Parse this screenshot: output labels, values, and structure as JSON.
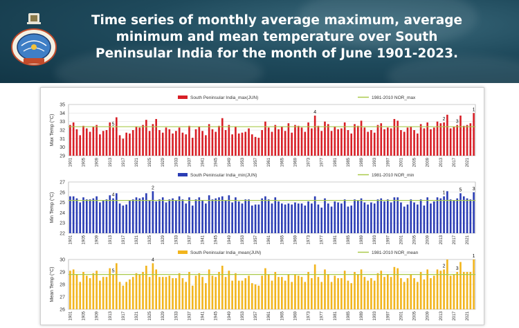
{
  "header": {
    "title": "Time series of monthly average maximum, average minimum and mean temperature over South Peninsular India for the month of June 1901-2023.",
    "colors": {
      "background": "#1f4a5c",
      "title": "#ffffff"
    },
    "logo_icon": "imd-emblem-icon"
  },
  "chart_data": [
    {
      "type": "bar",
      "legend": [
        "South Peninsular India_max(JUN)",
        "1981-2010 NOR_max"
      ],
      "ylabel": "Max Temp (°C)",
      "ylim": [
        29,
        35
      ],
      "yticks": [
        29,
        30,
        31,
        32,
        33,
        34,
        35
      ],
      "normal": 32.4,
      "color": "#d81f26",
      "normal_color": "#a9c94a",
      "start_year": 1901,
      "xticks": [
        "1901",
        "1905",
        "1909",
        "1913",
        "1917",
        "1921",
        "1925",
        "1929",
        "1933",
        "1937",
        "1941",
        "1945",
        "1949",
        "1953",
        "1957",
        "1961",
        "1965",
        "1969",
        "1973",
        "1977",
        "1981",
        "1985",
        "1989",
        "1993",
        "1997",
        "2001",
        "2005",
        "2009",
        "2013",
        "2017",
        "2021"
      ],
      "rank_labels": [
        {
          "year": 1914,
          "label": "5"
        },
        {
          "year": 1975,
          "label": "4"
        },
        {
          "year": 2014,
          "label": "2"
        },
        {
          "year": 2018,
          "label": "3"
        },
        {
          "year": 2023,
          "label": "1"
        }
      ],
      "values": [
        32.6,
        32.9,
        32.1,
        31.4,
        32.5,
        32.2,
        31.8,
        32.4,
        32.6,
        31.5,
        31.9,
        32.0,
        32.9,
        32.3,
        33.5,
        31.4,
        31.0,
        31.7,
        31.6,
        32.0,
        32.4,
        32.3,
        32.6,
        33.2,
        31.9,
        32.7,
        33.3,
        32.0,
        31.7,
        32.3,
        32.1,
        31.6,
        31.9,
        32.3,
        31.7,
        31.5,
        32.5,
        31.1,
        32.1,
        32.4,
        31.9,
        31.4,
        32.7,
        32.1,
        31.8,
        32.5,
        33.4,
        32.0,
        32.6,
        31.5,
        32.4,
        31.6,
        31.7,
        31.8,
        32.2,
        31.5,
        31.2,
        31.1,
        32.0,
        33.0,
        32.3,
        31.8,
        32.6,
        32.1,
        32.4,
        31.9,
        32.8,
        31.7,
        32.6,
        32.5,
        32.3,
        31.8,
        32.9,
        32.2,
        33.7,
        32.5,
        31.9,
        33.0,
        32.7,
        31.9,
        32.4,
        32.1,
        32.2,
        32.9,
        32.0,
        31.6,
        32.7,
        32.5,
        33.1,
        32.3,
        31.8,
        32.0,
        31.7,
        32.6,
        32.8,
        32.1,
        32.3,
        32.2,
        33.3,
        33.1,
        32.0,
        31.8,
        32.3,
        32.4,
        32.0,
        31.6,
        32.7,
        32.2,
        32.9,
        32.1,
        32.3,
        33.0,
        32.8,
        32.9,
        33.8,
        32.2,
        32.4,
        32.6,
        33.7,
        32.5,
        32.6,
        32.8,
        34.0
      ]
    },
    {
      "type": "bar",
      "legend": [
        "South Peninsular India_min(JUN)",
        "1981-2010 NOR_min"
      ],
      "ylabel": "Min Temp (°C)",
      "ylim": [
        22,
        27
      ],
      "yticks": [
        22,
        23,
        24,
        25,
        26,
        27
      ],
      "normal": 25.2,
      "color": "#2b3db5",
      "normal_color": "#a9c94a",
      "start_year": 1901,
      "xticks": [
        "1901",
        "1905",
        "1909",
        "1913",
        "1917",
        "1921",
        "1925",
        "1929",
        "1933",
        "1937",
        "1941",
        "1945",
        "1949",
        "1953",
        "1957",
        "1961",
        "1965",
        "1969",
        "1973",
        "1977",
        "1981",
        "1985",
        "1989",
        "1993",
        "1997",
        "2001",
        "2005",
        "2009",
        "2013",
        "2017",
        "2021"
      ],
      "rank_labels": [
        {
          "year": 1914,
          "label": "4"
        },
        {
          "year": 1926,
          "label": "2"
        },
        {
          "year": 2014,
          "label": "1"
        },
        {
          "year": 2019,
          "label": "5"
        },
        {
          "year": 2023,
          "label": "3"
        }
      ],
      "values": [
        25.6,
        25.6,
        25.4,
        25.0,
        25.5,
        25.3,
        25.3,
        25.4,
        25.6,
        25.0,
        25.2,
        25.3,
        25.7,
        25.4,
        25.9,
        24.9,
        24.7,
        24.8,
        25.2,
        25.3,
        25.5,
        25.4,
        25.5,
        25.9,
        25.2,
        26.1,
        25.1,
        25.3,
        25.5,
        25.0,
        25.3,
        25.4,
        25.2,
        25.6,
        25.3,
        24.9,
        25.5,
        24.7,
        25.3,
        25.5,
        25.2,
        24.9,
        25.7,
        25.3,
        25.4,
        25.5,
        25.6,
        25.2,
        25.7,
        25.0,
        25.5,
        25.1,
        24.9,
        25.3,
        25.3,
        24.7,
        24.8,
        24.8,
        25.4,
        25.6,
        25.3,
        24.9,
        25.5,
        25.1,
        24.9,
        24.8,
        24.9,
        24.8,
        25.0,
        24.9,
        24.9,
        24.7,
        25.1,
        24.9,
        25.6,
        24.8,
        24.5,
        25.4,
        24.9,
        24.6,
        25.1,
        25.0,
        24.9,
        25.3,
        24.6,
        24.7,
        25.3,
        25.2,
        25.4,
        25.0,
        24.8,
        25.0,
        24.9,
        25.3,
        25.4,
        25.1,
        25.3,
        25.0,
        25.5,
        25.5,
        25.0,
        24.6,
        24.8,
        25.3,
        25.0,
        24.8,
        25.3,
        24.7,
        25.5,
        24.9,
        25.1,
        25.5,
        25.4,
        25.6,
        26.1,
        25.3,
        25.2,
        25.4,
        25.9,
        25.6,
        25.4,
        25.3,
        26.0
      ]
    },
    {
      "type": "bar",
      "legend": [
        "South Peninsular India_mean(JUN)",
        "1981-2010 NOR_mean"
      ],
      "ylabel": "Mean Temp (°C)",
      "ylim": [
        26,
        30
      ],
      "yticks": [
        26,
        27,
        28,
        29,
        30
      ],
      "normal": 28.8,
      "color": "#f2b51d",
      "normal_color": "#a9c94a",
      "start_year": 1901,
      "xticks": [
        "1901",
        "1905",
        "1909",
        "1913",
        "1917",
        "1921",
        "1925",
        "1929",
        "1933",
        "1937",
        "1941",
        "1945",
        "1949",
        "1953",
        "1957",
        "1961",
        "1965",
        "1969",
        "1973",
        "1977",
        "1981",
        "1985",
        "1989",
        "1993",
        "1997",
        "2001",
        "2005",
        "2009",
        "2013",
        "2017",
        "2021"
      ],
      "rank_labels": [
        {
          "year": 1914,
          "label": "5"
        },
        {
          "year": 1926,
          "label": "4"
        },
        {
          "year": 2014,
          "label": "2"
        },
        {
          "year": 2018,
          "label": "3"
        },
        {
          "year": 2023,
          "label": "1"
        }
      ],
      "values": [
        29.1,
        29.2,
        28.8,
        28.2,
        29.0,
        28.7,
        28.5,
        28.9,
        29.1,
        28.3,
        28.6,
        28.6,
        29.3,
        28.8,
        29.7,
        28.2,
        27.9,
        28.2,
        28.4,
        28.6,
        28.9,
        28.8,
        29.0,
        29.5,
        28.6,
        29.7,
        29.2,
        28.6,
        28.6,
        28.6,
        28.7,
        28.5,
        28.5,
        28.9,
        28.5,
        28.2,
        29.0,
        27.9,
        28.7,
        28.9,
        28.6,
        28.1,
        29.2,
        28.7,
        28.6,
        29.0,
        29.5,
        28.6,
        29.1,
        28.3,
        28.9,
        28.3,
        28.3,
        28.5,
        28.7,
        28.1,
        28.0,
        27.9,
        28.7,
        29.3,
        28.8,
        28.3,
        29.0,
        28.6,
        28.6,
        28.3,
        28.8,
        28.2,
        28.8,
        28.7,
        28.6,
        28.2,
        29.0,
        28.5,
        29.6,
        28.6,
        28.2,
        29.2,
        28.8,
        28.2,
        28.7,
        28.5,
        28.5,
        29.1,
        28.3,
        28.1,
        29.0,
        28.8,
        29.2,
        28.6,
        28.3,
        28.5,
        28.3,
        28.9,
        29.1,
        28.6,
        28.8,
        28.6,
        29.4,
        29.3,
        28.5,
        28.2,
        28.5,
        28.8,
        28.5,
        28.2,
        29.0,
        28.4,
        29.2,
        28.5,
        28.7,
        29.2,
        29.1,
        29.2,
        30.0,
        28.7,
        28.8,
        29.0,
        29.8,
        29.0,
        29.0,
        29.0,
        30.0
      ]
    }
  ]
}
